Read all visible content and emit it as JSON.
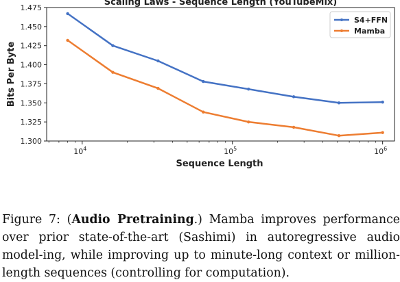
{
  "chart_data": {
    "type": "line",
    "title": "Scaling Laws - Sequence Length (YouTubeMix)",
    "xlabel": "Sequence Length",
    "ylabel": "Bits Per Byte",
    "xscale": "log",
    "xlim": [
      5800,
      1200000
    ],
    "ylim": [
      1.3,
      1.475
    ],
    "xticks": [
      {
        "value": 10000,
        "base": "10",
        "exp": "4"
      },
      {
        "value": 100000,
        "base": "10",
        "exp": "5"
      },
      {
        "value": 1000000,
        "base": "10",
        "exp": "6"
      }
    ],
    "yticks": [
      "1.300",
      "1.325",
      "1.350",
      "1.375",
      "1.400",
      "1.425",
      "1.450",
      "1.475"
    ],
    "grid": false,
    "legend_position": "top-right",
    "series": [
      {
        "name": "S4+FFN",
        "color": "#4472c4",
        "x": [
          8000,
          16000,
          32000,
          64000,
          128000,
          256000,
          512000,
          1000000
        ],
        "y": [
          1.467,
          1.425,
          1.405,
          1.378,
          1.368,
          1.358,
          1.35,
          1.351
        ]
      },
      {
        "name": "Mamba",
        "color": "#ed7d31",
        "x": [
          8000,
          16000,
          32000,
          64000,
          128000,
          256000,
          512000,
          1000000
        ],
        "y": [
          1.432,
          1.39,
          1.369,
          1.338,
          1.325,
          1.318,
          1.307,
          1.311
        ]
      }
    ]
  },
  "caption": {
    "prefix": "Figure 7: (",
    "bold": "Audio Pretraining",
    "suffix": ".) Mamba improves performance over prior state-of-the-art (Sashimi) in autoregressive audio model-ing, while improving up to minute-long context or million-length sequences (controlling for computation)."
  }
}
